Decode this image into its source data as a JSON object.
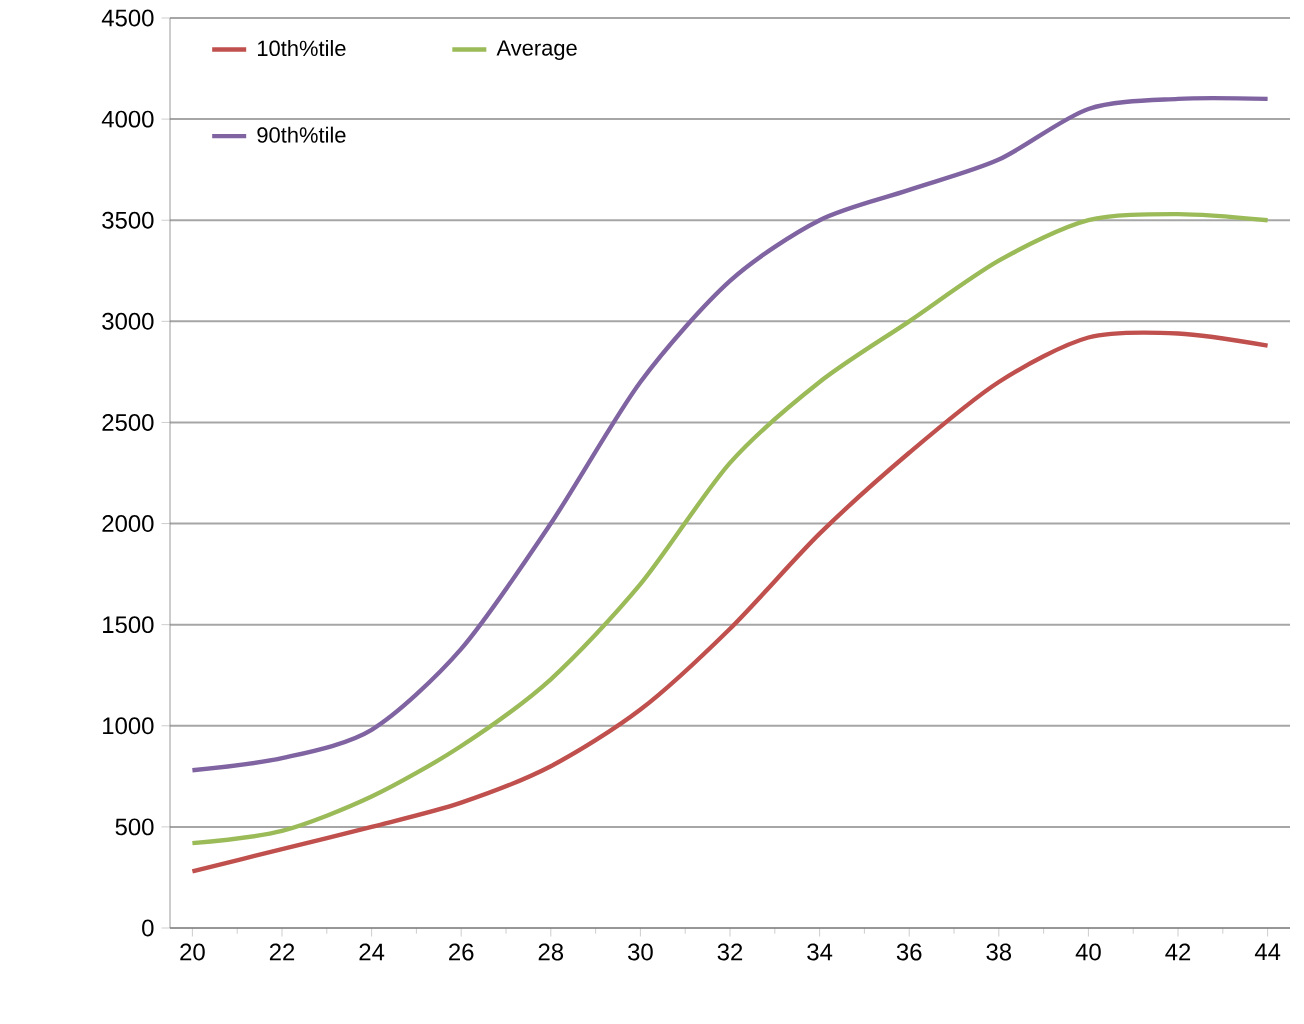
{
  "chart_data": {
    "type": "line",
    "x": [
      20,
      22,
      24,
      26,
      28,
      30,
      32,
      34,
      36,
      38,
      40,
      42,
      44
    ],
    "series": [
      {
        "name": "10th%tile",
        "color": "#c0504d",
        "values": [
          280,
          390,
          500,
          620,
          800,
          1080,
          1480,
          1950,
          2350,
          2700,
          2920,
          2940,
          2880
        ]
      },
      {
        "name": "Average",
        "color": "#9bbb59",
        "values": [
          420,
          480,
          650,
          900,
          1230,
          1700,
          2300,
          2700,
          3000,
          3300,
          3500,
          3530,
          3500
        ]
      },
      {
        "name": "90th%tile",
        "color": "#8064a2",
        "values": [
          780,
          840,
          980,
          1380,
          2000,
          2700,
          3200,
          3500,
          3650,
          3800,
          4050,
          4100,
          4100
        ]
      }
    ],
    "xlim": [
      19.5,
      44.5
    ],
    "xticks": [
      20,
      22,
      24,
      26,
      28,
      30,
      32,
      34,
      36,
      38,
      40,
      42,
      44
    ],
    "ylim": [
      0,
      4500
    ],
    "yticks": [
      0,
      500,
      1000,
      1500,
      2000,
      2500,
      3000,
      3500,
      4000,
      4500
    ],
    "grid": "y",
    "legend": "top left",
    "marker": "none",
    "line_style": "solid"
  }
}
